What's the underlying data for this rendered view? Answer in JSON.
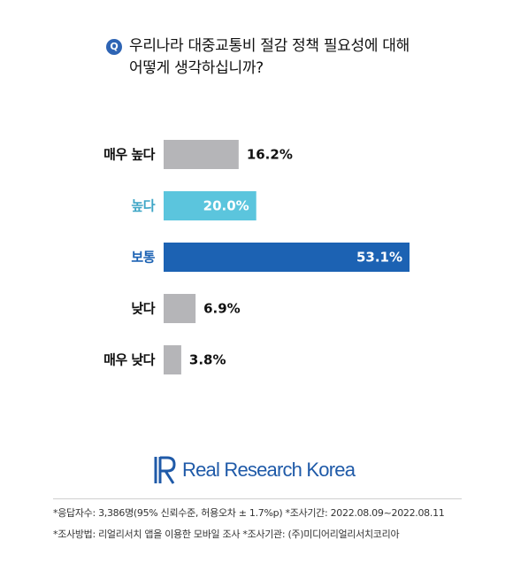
{
  "question": {
    "badge": "Q",
    "line1": "우리나라 대중교통비 절감 정책 필요성에 대해",
    "line2": "어떻게 생각하십니까?"
  },
  "chart_data": {
    "type": "bar",
    "orientation": "horizontal",
    "categories": [
      "매우 높다",
      "높다",
      "보통",
      "낮다",
      "매우 낮다"
    ],
    "values": [
      16.2,
      20.0,
      53.1,
      6.9,
      3.8
    ],
    "value_labels": [
      "16.2%",
      "20.0%",
      "53.1%",
      "6.9%",
      "3.8%"
    ],
    "colors": [
      "#b5b5b8",
      "#5bc5dd",
      "#1c62b3",
      "#b5b5b8",
      "#b5b5b8"
    ],
    "label_colors": [
      "#111111",
      "#3ea6c6",
      "#1c62b3",
      "#111111",
      "#111111"
    ],
    "inside_label": [
      false,
      true,
      true,
      false,
      false
    ],
    "xlim": [
      0,
      60
    ],
    "grid": false,
    "legend": "none"
  },
  "brand": {
    "name": "Real Research Korea",
    "logo_color": "#1f5aa8"
  },
  "notes": {
    "line1": "*응답자수: 3,386명(95% 신뢰수준, 허용오차 ± 1.7%p)  *조사기간: 2022.08.09~2022.08.11",
    "line2": "*조사방법: 리얼리서치 앱을 이용한 모바일 조사  *조사기관: (주)미디어리얼리서치코리아"
  }
}
